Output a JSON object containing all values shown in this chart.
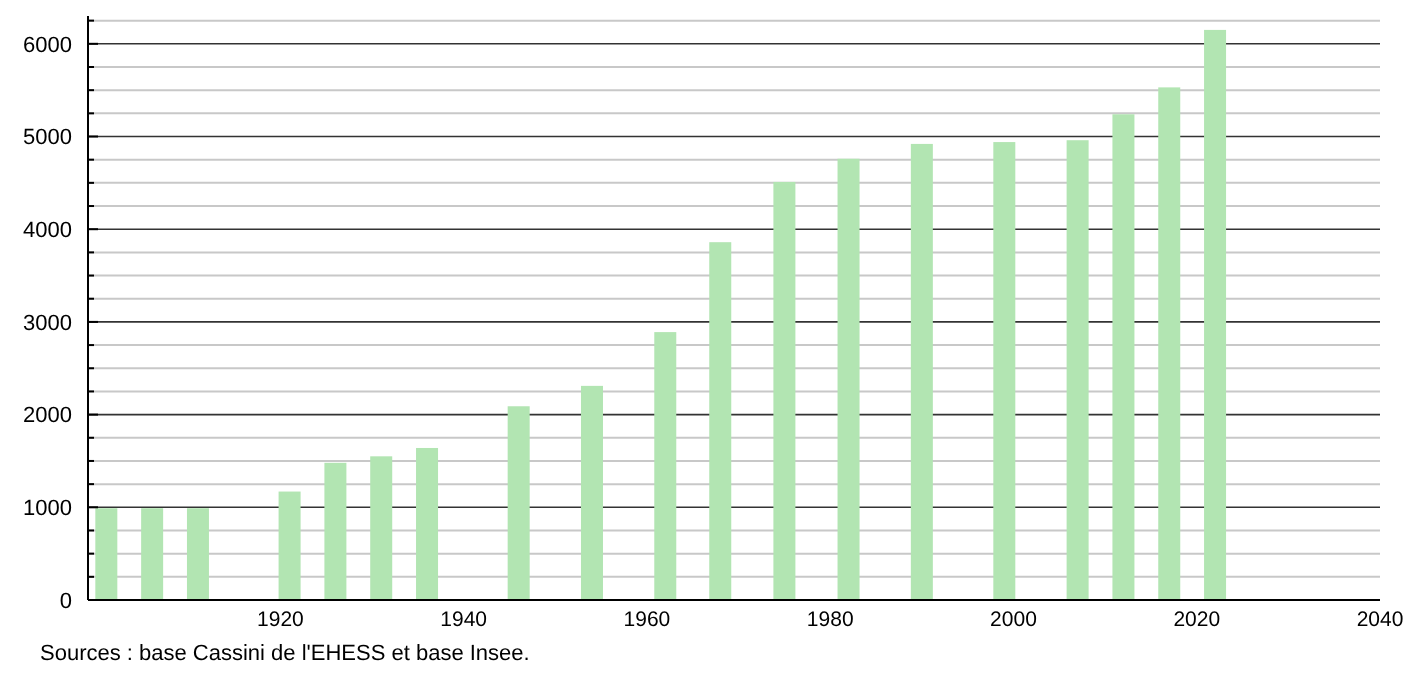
{
  "chart_data": {
    "type": "bar",
    "x": [
      1901,
      1906,
      1911,
      1921,
      1926,
      1931,
      1936,
      1946,
      1954,
      1962,
      1968,
      1975,
      1982,
      1990,
      1999,
      2007,
      2012,
      2017,
      2022
    ],
    "values": [
      990,
      990,
      990,
      1170,
      1480,
      1550,
      1640,
      2090,
      2310,
      2890,
      3860,
      4510,
      4760,
      4920,
      4940,
      4960,
      5240,
      5530,
      6150
    ],
    "color": "#b2e5b2",
    "xlim": [
      1899,
      2040
    ],
    "xticks": [
      1920,
      1940,
      1960,
      1980,
      2000,
      2020,
      2040
    ],
    "ylim": [
      0,
      6300
    ],
    "yticks": [
      0,
      {
        "value": 250,
        "label": null
      },
      {
        "value": 500,
        "label": null
      },
      {
        "value": 750,
        "label": null
      },
      1000,
      {
        "value": 1250,
        "label": null
      },
      {
        "value": 1500,
        "label": null
      },
      {
        "value": 1750,
        "label": null
      },
      2000,
      {
        "value": 2250,
        "label": null
      },
      {
        "value": 2500,
        "label": null
      },
      {
        "value": 2750,
        "label": null
      },
      3000,
      {
        "value": 3250,
        "label": null
      },
      {
        "value": 3500,
        "label": null
      },
      {
        "value": 3750,
        "label": null
      },
      4000,
      {
        "value": 4250,
        "label": null
      },
      {
        "value": 4500,
        "label": null
      },
      {
        "value": 4750,
        "label": null
      },
      5000,
      {
        "value": 5250,
        "label": null
      },
      {
        "value": 5500,
        "label": null
      },
      {
        "value": 5750,
        "label": null
      },
      6000,
      {
        "value": 6250,
        "label": null
      }
    ],
    "grid": true,
    "annotations": [
      "Sources : base Cassini de l'EHESS et base Insee."
    ]
  }
}
